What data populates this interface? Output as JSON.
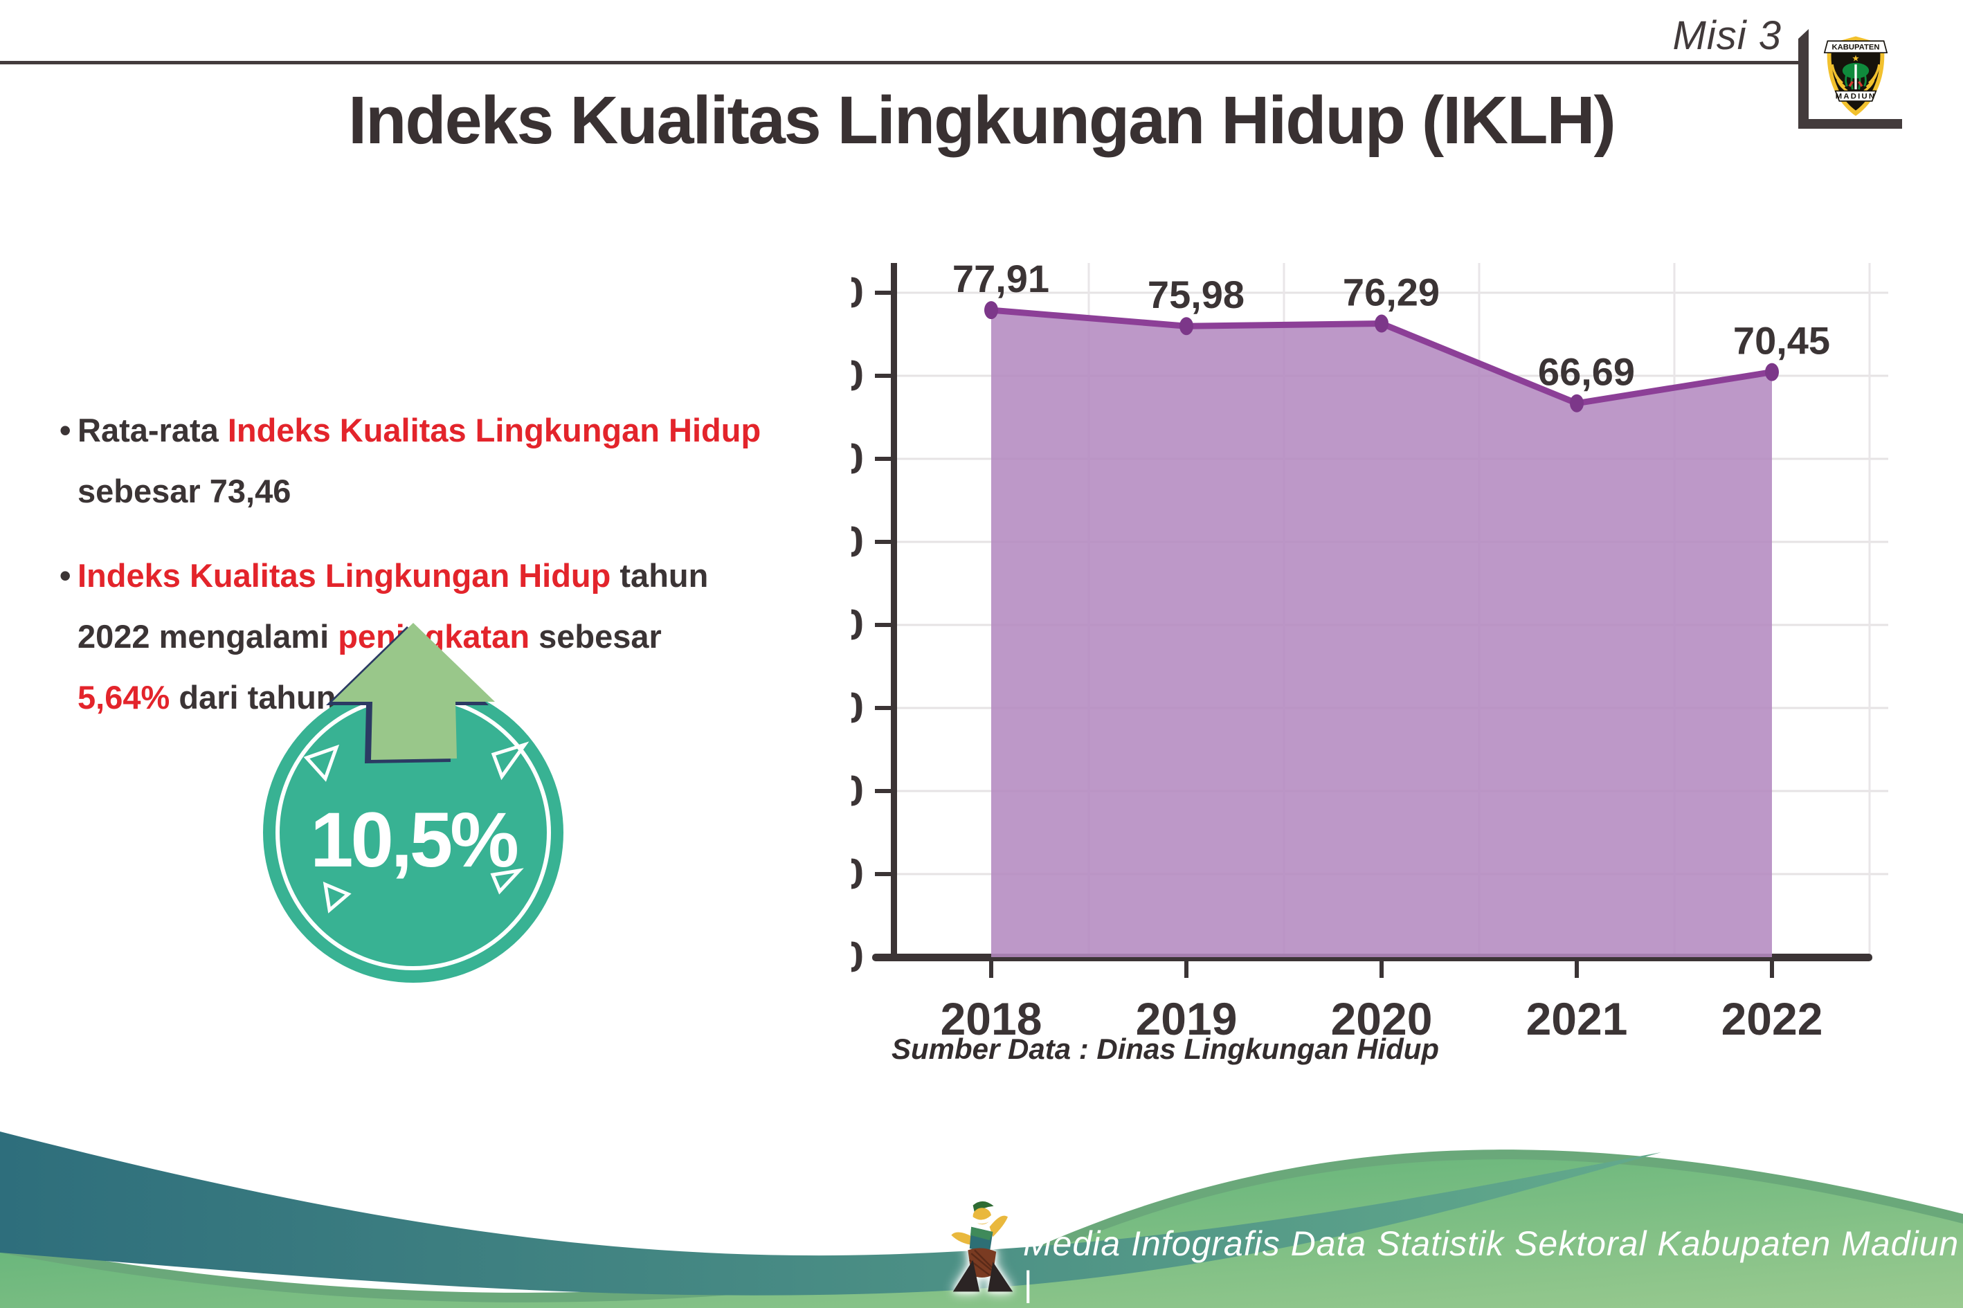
{
  "header": {
    "misi_label": "Misi 3",
    "logo": {
      "top_banner": "KABUPATEN",
      "bottom_banner": "MADIUN"
    }
  },
  "title": "Indeks Kualitas Lingkungan Hidup (IKLH)",
  "insights": {
    "item1": {
      "bullet": "•",
      "pre": "Rata-rata ",
      "highlight": "Indeks Kualitas Lingkungan Hidup",
      "post": " sebesar 73,46"
    },
    "item2": {
      "bullet": "•",
      "highlight1": "Indeks Kualitas Lingkungan Hidup",
      "mid1": " tahun 2022 mengalami ",
      "highlight2": "peningkatan",
      "mid2": " sebesar ",
      "highlight3": "5,64%",
      "end": " dari tahun 2021"
    }
  },
  "badge": {
    "value": "10,5%"
  },
  "chart_data": {
    "type": "area",
    "categories": [
      "2018",
      "2019",
      "2020",
      "2021",
      "2022"
    ],
    "values": [
      77.91,
      75.98,
      76.29,
      66.69,
      70.45
    ],
    "value_labels": [
      "77,91",
      "75,98",
      "76,29",
      "66,69",
      "70,45"
    ],
    "ylim": [
      0,
      80
    ],
    "ytick_step": 10,
    "grid": true,
    "legend": false,
    "line_color": "#8c3f97",
    "fill_color": "#b48ac0",
    "marker_color": "#7c3789",
    "axis_color": "#3b3435",
    "source_note": "Sumber Data : Dinas Lingkungan Hidup"
  },
  "footer": {
    "text": "Media Infografis Data Statistik Sektoral Kabupaten Madiun |"
  },
  "colors": {
    "accent_red": "#e3242b",
    "text_dark": "#3b3435",
    "badge_teal": "#38b293",
    "arrow_green": "#99c78a",
    "arrow_outline_navy": "#2b3a63"
  }
}
